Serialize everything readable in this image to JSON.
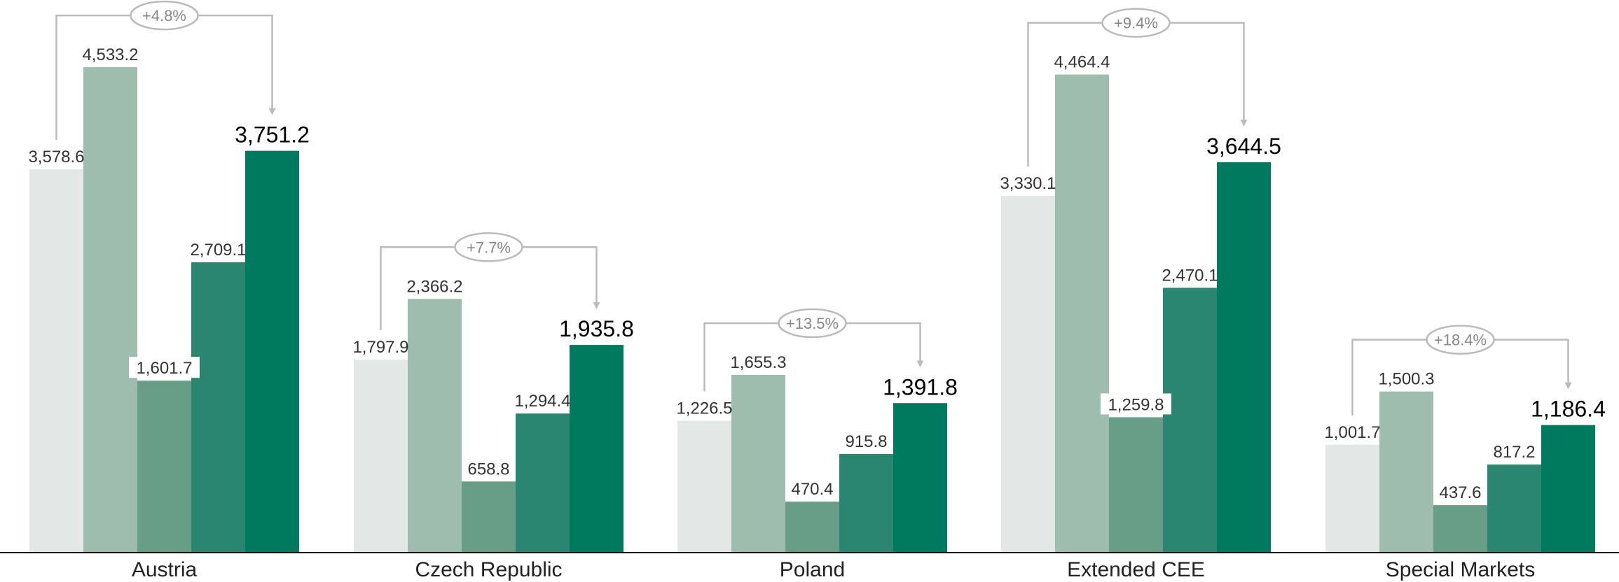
{
  "chart_data": {
    "type": "bar",
    "title": "",
    "xlabel": "",
    "ylabel": "",
    "ylim": [
      0,
      4900
    ],
    "grid": false,
    "legend": "none",
    "categories": [
      "Austria",
      "Czech Republic",
      "Poland",
      "Extended CEE",
      "Special Markets"
    ],
    "series": [
      {
        "color": "#e3e7e6",
        "values": [
          3578.6,
          1797.9,
          1226.5,
          3330.1,
          1001.7
        ]
      },
      {
        "color": "#9fbdae",
        "values": [
          4533.2,
          2366.2,
          1655.3,
          4464.4,
          1500.3
        ]
      },
      {
        "color": "#689e88",
        "values": [
          1601.7,
          658.8,
          470.4,
          1259.8,
          437.6
        ]
      },
      {
        "color": "#2a8670",
        "values": [
          2709.1,
          1294.4,
          915.8,
          2470.1,
          817.2
        ]
      },
      {
        "color": "#007a5e",
        "values": [
          3751.2,
          1935.8,
          1391.8,
          3644.5,
          1186.4
        ]
      }
    ],
    "value_labels": [
      [
        "3,578.6",
        "4,533.2",
        "1,601.7",
        "2,709.1",
        "3,751.2"
      ],
      [
        "1,797.9",
        "2,366.2",
        "658.8",
        "1,294.4",
        "1,935.8"
      ],
      [
        "1,226.5",
        "1,655.3",
        "470.4",
        "915.8",
        "1,391.8"
      ],
      [
        "3,330.1",
        "4,464.4",
        "1,259.8",
        "2,470.1",
        "3,644.5"
      ],
      [
        "1,001.7",
        "1,500.3",
        "437.6",
        "817.2",
        "1,186.4"
      ]
    ],
    "growth_annotations": [
      "+4.8%",
      "+7.7%",
      "+13.5%",
      "+9.4%",
      "+18.4%"
    ]
  },
  "colors": {
    "axis": "#111111",
    "bracket": "#bbbbbb",
    "label_bg": "#ffffff"
  }
}
